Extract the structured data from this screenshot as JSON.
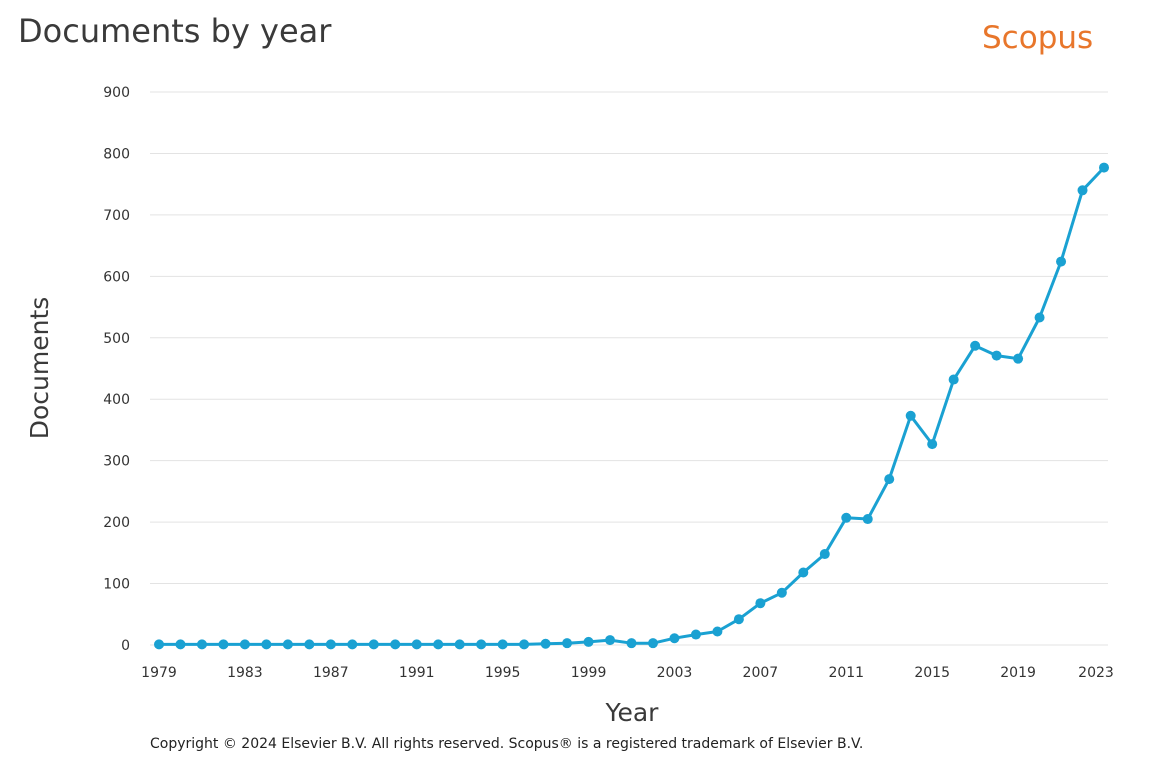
{
  "header": {
    "title": "Documents by year",
    "brand": "Scopus"
  },
  "footer": {
    "copyright": "Copyright © 2024 Elsevier B.V. All rights reserved. Scopus® is a registered trademark of Elsevier B.V."
  },
  "colors": {
    "series": "#1aa1d2",
    "brand": "#e8762b",
    "grid": "#e3e3e3"
  },
  "chart_data": {
    "type": "line",
    "title": "Documents by year",
    "xlabel": "Year",
    "ylabel": "Documents",
    "xlim": [
      1979,
      2023
    ],
    "ylim": [
      0,
      900
    ],
    "x_ticks": [
      1979,
      1983,
      1987,
      1991,
      1995,
      1999,
      2003,
      2007,
      2011,
      2015,
      2019,
      2023
    ],
    "y_ticks": [
      0,
      100,
      200,
      300,
      400,
      500,
      600,
      700,
      800,
      900
    ],
    "grid": true,
    "x": [
      1979,
      1980,
      1981,
      1982,
      1983,
      1984,
      1985,
      1986,
      1987,
      1988,
      1989,
      1990,
      1991,
      1992,
      1993,
      1994,
      1995,
      1996,
      1997,
      1998,
      1999,
      2000,
      2001,
      2002,
      2003,
      2004,
      2005,
      2006,
      2007,
      2008,
      2009,
      2010,
      2011,
      2012,
      2013,
      2014,
      2015,
      2016,
      2017,
      2018,
      2019,
      2020,
      2021,
      2022,
      2023
    ],
    "series": [
      {
        "values": [
          1,
          1,
          1,
          1,
          1,
          1,
          1,
          1,
          1,
          1,
          1,
          1,
          1,
          1,
          1,
          1,
          1,
          1,
          2,
          3,
          5,
          8,
          3,
          3,
          11,
          17,
          22,
          42,
          68,
          85,
          118,
          148,
          207,
          205,
          270,
          373,
          327,
          432,
          487,
          471,
          466,
          533,
          624,
          740,
          777
        ]
      }
    ]
  }
}
